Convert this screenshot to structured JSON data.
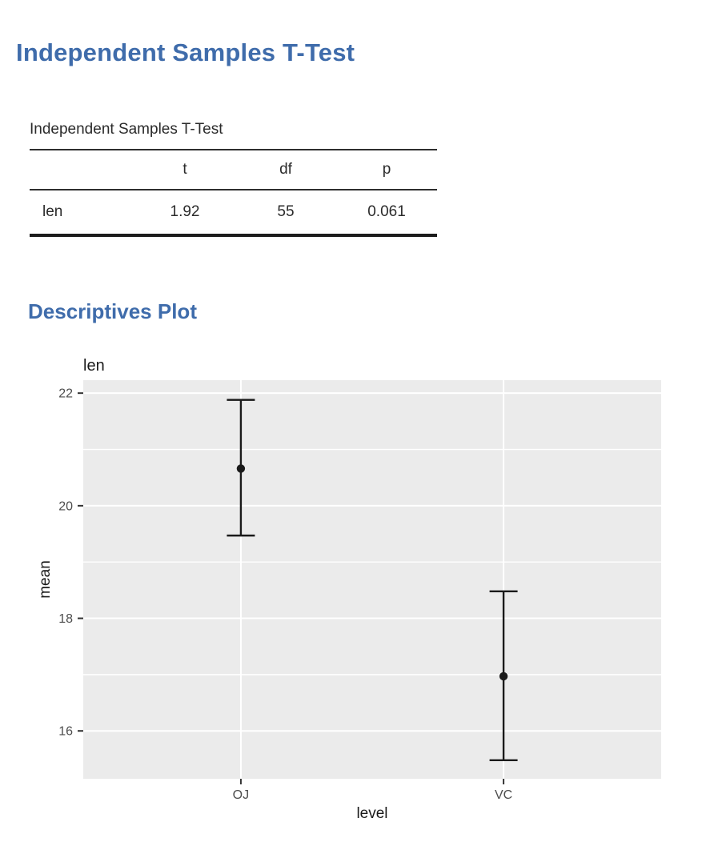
{
  "page": {
    "title": "Independent Samples T-Test"
  },
  "sections": {
    "descriptives_plot_heading": "Descriptives Plot"
  },
  "ttest_table": {
    "caption": "Independent Samples T-Test",
    "columns": [
      "",
      "t",
      "df",
      "p"
    ],
    "rows": [
      [
        "len",
        "1.92",
        "55",
        "0.061"
      ]
    ]
  },
  "colors": {
    "heading_blue": "#3f6cab",
    "panel_gray": "#ebebeb",
    "grid_white": "#ffffff",
    "tick_label_gray": "#4d4d4d",
    "axis_tick_gray": "#333333",
    "text_black": "#1a1a1a"
  },
  "chart_data": {
    "type": "errorbar",
    "title": "len",
    "xlabel": "level",
    "ylabel": "mean",
    "categories": [
      "OJ",
      "VC"
    ],
    "series": [
      {
        "name": "mean",
        "values": [
          20.66,
          16.97
        ]
      }
    ],
    "error_bars": {
      "lower": [
        19.47,
        15.48
      ],
      "upper": [
        21.88,
        18.48
      ]
    },
    "ylim": [
      15.15,
      22.23
    ],
    "yticks": [
      16,
      18,
      20,
      22
    ],
    "yticks_minor": [
      17,
      19,
      21
    ],
    "grid": true,
    "legend": "none"
  }
}
